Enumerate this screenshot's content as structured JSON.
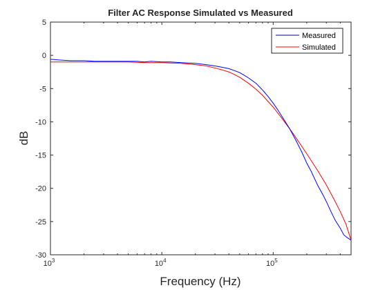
{
  "chart_data": {
    "type": "line",
    "title": "Filter AC Response Simulated vs Measured",
    "xlabel": "Frequency (Hz)",
    "ylabel": "dB",
    "xscale": "log",
    "xlim": [
      1000,
      500000
    ],
    "ylim": [
      -30,
      5
    ],
    "xticks": [
      {
        "value": 1000,
        "base": "10",
        "exp": "3"
      },
      {
        "value": 10000,
        "base": "10",
        "exp": "4"
      },
      {
        "value": 100000,
        "base": "10",
        "exp": "5"
      }
    ],
    "yticks": [
      5,
      0,
      -5,
      -10,
      -15,
      -20,
      -25,
      -30
    ],
    "grid": false,
    "legend_position": "top-right",
    "series": [
      {
        "name": "Measured",
        "color": "#0000ff",
        "x": [
          1000,
          1200,
          1500,
          2000,
          2500,
          3000,
          4000,
          5000,
          6000,
          7000,
          8000,
          10000,
          12000,
          15000,
          20000,
          25000,
          30000,
          35000,
          40000,
          45000,
          50000,
          55000,
          60000,
          70000,
          80000,
          90000,
          100000,
          110000,
          120000,
          140000,
          160000,
          180000,
          200000,
          220000,
          250000,
          280000,
          300000,
          330000,
          360000,
          400000,
          430000,
          460000,
          500000
        ],
        "y": [
          -0.6,
          -0.7,
          -0.8,
          -0.8,
          -0.9,
          -0.9,
          -0.9,
          -0.9,
          -0.9,
          -1.0,
          -0.9,
          -1.0,
          -1.0,
          -1.1,
          -1.2,
          -1.4,
          -1.6,
          -1.8,
          -2.0,
          -2.3,
          -2.6,
          -3.0,
          -3.4,
          -4.2,
          -5.2,
          -6.2,
          -7.2,
          -8.2,
          -9.2,
          -11.0,
          -12.8,
          -14.5,
          -16.2,
          -17.5,
          -19.5,
          -21.0,
          -22.0,
          -23.5,
          -24.8,
          -26.0,
          -27.0,
          -27.4,
          -27.8
        ]
      },
      {
        "name": "Simulated",
        "color": "#ff0000",
        "x": [
          1000,
          1500,
          2000,
          3000,
          5000,
          7000,
          10000,
          15000,
          20000,
          25000,
          30000,
          35000,
          40000,
          45000,
          50000,
          60000,
          70000,
          80000,
          100000,
          120000,
          150000,
          200000,
          250000,
          300000,
          350000,
          400000,
          450000,
          500000
        ],
        "y": [
          -1.0,
          -1.0,
          -1.0,
          -1.0,
          -1.0,
          -1.1,
          -1.1,
          -1.2,
          -1.4,
          -1.6,
          -1.9,
          -2.2,
          -2.5,
          -2.9,
          -3.3,
          -4.2,
          -5.1,
          -6.0,
          -7.8,
          -9.5,
          -11.7,
          -14.8,
          -17.3,
          -19.5,
          -21.6,
          -23.5,
          -25.4,
          -27.8
        ]
      }
    ]
  }
}
